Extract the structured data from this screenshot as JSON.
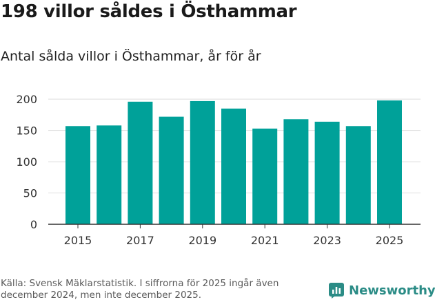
{
  "title": "198 villor såldes i Östhammar",
  "subtitle": "Antal sålda villor i Östhammar, år för år",
  "source": "Källa: Svensk Mäklarstatistik. I siffrorna för 2025 ingår även december 2024, men inte december 2025.",
  "brand": {
    "name": "Newsworthy",
    "color": "#2b8c86"
  },
  "colors": {
    "bar": "#00a199",
    "grid": "#dddddd",
    "axis": "#333333"
  },
  "chart_data": {
    "type": "bar",
    "title": "Antal sålda villor i Östhammar, år för år",
    "categories": [
      "2015",
      "2016",
      "2017",
      "2018",
      "2019",
      "2020",
      "2021",
      "2022",
      "2023",
      "2024",
      "2025"
    ],
    "values": [
      157,
      158,
      196,
      172,
      197,
      185,
      153,
      168,
      164,
      157,
      198
    ],
    "x_tick_labels": [
      "2015",
      "2017",
      "2019",
      "2021",
      "2023",
      "2025"
    ],
    "y_ticks": [
      "0",
      "50",
      "100",
      "150",
      "200"
    ],
    "ylim": [
      0,
      220
    ],
    "xlabel": "",
    "ylabel": "",
    "grid": true
  }
}
